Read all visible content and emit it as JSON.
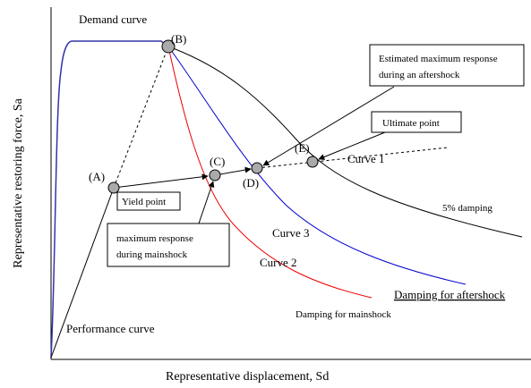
{
  "diagram": {
    "y_axis_label": "Representative restoring force, Sa",
    "x_axis_label": "Representative displacement, Sd",
    "curves": {
      "demand": "Demand curve",
      "performance": "Performance curve",
      "curve1": "Curve 1",
      "curve2": "Curve 2",
      "curve3": "Curve 3",
      "damping5": "5% damping",
      "damping_after": "Damping for aftershock",
      "damping_main": "Damping for mainshock"
    },
    "points": {
      "A": "(A)",
      "B": "(B)",
      "C": "(C)",
      "D": "(D)",
      "E": "(E)"
    },
    "boxes": {
      "yield": "Yield point",
      "ultimate": "Ultimate point",
      "aftershock": [
        "Estimated maximum response",
        "during an aftershock"
      ],
      "mainshock": [
        "maximum response",
        "during mainshock"
      ]
    }
  }
}
